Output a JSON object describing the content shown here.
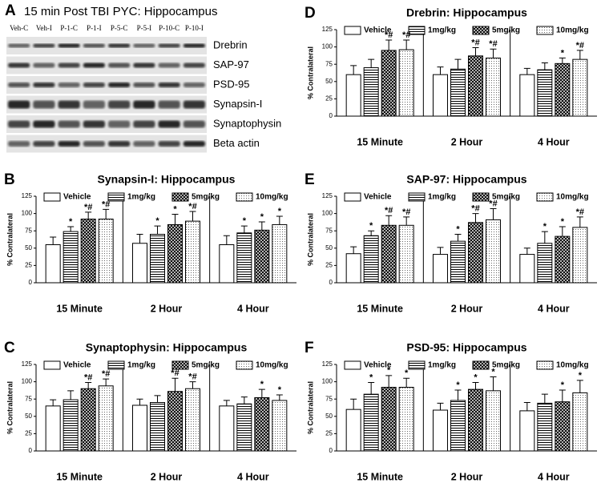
{
  "blot": {
    "panel": "A",
    "title": "15 min Post TBI PYC: Hippocampus",
    "lanes": [
      "Veh-C",
      "Veh-I",
      "P-1-C",
      "P-1-I",
      "P-5-C",
      "P-5-I",
      "P-10-C",
      "P-10-I"
    ],
    "proteins": [
      "Drebrin",
      "SAP-97",
      "PSD-95",
      "Synapsin-I",
      "Synaptophysin",
      "Beta actin"
    ]
  },
  "chart_data": [
    {
      "type": "bar",
      "panel": "D",
      "title": "Drebrin: Hippocampus",
      "ylabel": "% Contralateral",
      "categories": [
        "15 Minute",
        "2 Hour",
        "4 Hour"
      ],
      "ylim": [
        0,
        125
      ],
      "yticks": [
        0,
        25,
        50,
        75,
        100,
        125
      ],
      "legend": "top",
      "series": [
        {
          "name": "Vehicle",
          "pattern": "none",
          "color": "#000000",
          "values": [
            60,
            60,
            60
          ],
          "errors": [
            13,
            11,
            9
          ],
          "significance": [
            null,
            null,
            null
          ]
        },
        {
          "name": "1mg/kg",
          "pattern": "horizontal-lines",
          "color": "#000000",
          "values": [
            70,
            68,
            67
          ],
          "errors": [
            12,
            14,
            10
          ],
          "significance": [
            null,
            null,
            null
          ]
        },
        {
          "name": "5mg/kg",
          "pattern": "crosshatch",
          "color": "#000000",
          "values": [
            95,
            87,
            76
          ],
          "errors": [
            15,
            12,
            8
          ],
          "significance": [
            "*#",
            "*#",
            "*"
          ]
        },
        {
          "name": "10mg/kg",
          "pattern": "dots",
          "color": "#000000",
          "values": [
            96,
            84,
            82
          ],
          "errors": [
            14,
            13,
            13
          ],
          "significance": [
            "*#",
            "*#",
            "*#"
          ]
        }
      ]
    },
    {
      "type": "bar",
      "panel": "B",
      "title": "Synapsin-I: Hippocampus",
      "ylabel": "% Contralateral",
      "categories": [
        "15 Minute",
        "2 Hour",
        "4 Hour"
      ],
      "ylim": [
        0,
        125
      ],
      "yticks": [
        0,
        25,
        50,
        75,
        100,
        125
      ],
      "legend": "top",
      "series": [
        {
          "name": "Vehicle",
          "pattern": "none",
          "color": "#000000",
          "values": [
            55,
            57,
            55
          ],
          "errors": [
            11,
            13,
            13
          ],
          "significance": [
            null,
            null,
            null
          ]
        },
        {
          "name": "1mg/kg",
          "pattern": "horizontal-lines",
          "color": "#000000",
          "values": [
            74,
            70,
            72
          ],
          "errors": [
            7,
            12,
            10
          ],
          "significance": [
            "*",
            "*",
            "*"
          ]
        },
        {
          "name": "5mg/kg",
          "pattern": "crosshatch",
          "color": "#000000",
          "values": [
            92,
            84,
            76
          ],
          "errors": [
            10,
            15,
            12
          ],
          "significance": [
            "*#",
            "*",
            "*"
          ]
        },
        {
          "name": "10mg/kg",
          "pattern": "dots",
          "color": "#000000",
          "values": [
            92,
            89,
            84
          ],
          "errors": [
            14,
            14,
            12
          ],
          "significance": [
            "*#",
            "*#",
            "*"
          ]
        }
      ]
    },
    {
      "type": "bar",
      "panel": "E",
      "title": "SAP-97: Hippocampus",
      "ylabel": "% Contralateral",
      "categories": [
        "15 Minute",
        "2 Hour",
        "4 Hour"
      ],
      "ylim": [
        0,
        125
      ],
      "yticks": [
        0,
        25,
        50,
        75,
        100,
        125
      ],
      "legend": "top",
      "series": [
        {
          "name": "Vehicle",
          "pattern": "none",
          "color": "#000000",
          "values": [
            42,
            41,
            41
          ],
          "errors": [
            10,
            10,
            9
          ],
          "significance": [
            null,
            null,
            null
          ]
        },
        {
          "name": "1mg/kg",
          "pattern": "horizontal-lines",
          "color": "#000000",
          "values": [
            68,
            60,
            57
          ],
          "errors": [
            7,
            10,
            17
          ],
          "significance": [
            "*",
            "*",
            "*"
          ]
        },
        {
          "name": "5mg/kg",
          "pattern": "crosshatch",
          "color": "#000000",
          "values": [
            83,
            87,
            67
          ],
          "errors": [
            14,
            13,
            14
          ],
          "significance": [
            "*#",
            "*#",
            "*"
          ]
        },
        {
          "name": "10mg/kg",
          "pattern": "dots",
          "color": "#000000",
          "values": [
            83,
            91,
            80
          ],
          "errors": [
            12,
            16,
            15
          ],
          "significance": [
            "*#",
            "*#",
            "*#"
          ]
        }
      ]
    },
    {
      "type": "bar",
      "panel": "C",
      "title": "Synaptophysin: Hippocampus",
      "ylabel": "% Contralateral",
      "categories": [
        "15 Minute",
        "2 Hour",
        "4 Hour"
      ],
      "ylim": [
        0,
        125
      ],
      "yticks": [
        0,
        25,
        50,
        75,
        100,
        125
      ],
      "legend": "top",
      "series": [
        {
          "name": "Vehicle",
          "pattern": "none",
          "color": "#000000",
          "values": [
            65,
            66,
            65
          ],
          "errors": [
            9,
            9,
            8
          ],
          "significance": [
            null,
            null,
            null
          ]
        },
        {
          "name": "1mg/kg",
          "pattern": "horizontal-lines",
          "color": "#000000",
          "values": [
            74,
            70,
            68
          ],
          "errors": [
            13,
            10,
            10
          ],
          "significance": [
            null,
            null,
            null
          ]
        },
        {
          "name": "5mg/kg",
          "pattern": "crosshatch",
          "color": "#000000",
          "values": [
            90,
            86,
            77
          ],
          "errors": [
            9,
            19,
            12
          ],
          "significance": [
            "*#",
            "*#",
            "*"
          ]
        },
        {
          "name": "10mg/kg",
          "pattern": "dots",
          "color": "#000000",
          "values": [
            94,
            90,
            73
          ],
          "errors": [
            10,
            10,
            8
          ],
          "significance": [
            "*#",
            "*#",
            "*"
          ]
        }
      ]
    },
    {
      "type": "bar",
      "panel": "F",
      "title": "PSD-95: Hippocampus",
      "ylabel": "% Contralateral",
      "categories": [
        "15 Minute",
        "2 Hour",
        "4 Hour"
      ],
      "ylim": [
        0,
        125
      ],
      "yticks": [
        0,
        25,
        50,
        75,
        100,
        125
      ],
      "legend": "top",
      "series": [
        {
          "name": "Vehicle",
          "pattern": "none",
          "color": "#000000",
          "values": [
            60,
            59,
            58
          ],
          "errors": [
            15,
            10,
            12
          ],
          "significance": [
            null,
            null,
            null
          ]
        },
        {
          "name": "1mg/kg",
          "pattern": "horizontal-lines",
          "color": "#000000",
          "values": [
            82,
            73,
            69
          ],
          "errors": [
            17,
            15,
            13
          ],
          "significance": [
            "*",
            "*",
            null
          ]
        },
        {
          "name": "5mg/kg",
          "pattern": "crosshatch",
          "color": "#000000",
          "values": [
            92,
            89,
            71
          ],
          "errors": [
            17,
            10,
            17
          ],
          "significance": [
            "*",
            "*",
            "*"
          ]
        },
        {
          "name": "10mg/kg",
          "pattern": "dots",
          "color": "#000000",
          "values": [
            92,
            87,
            84
          ],
          "errors": [
            13,
            20,
            18
          ],
          "significance": [
            "*",
            "*",
            "*"
          ]
        }
      ]
    }
  ]
}
